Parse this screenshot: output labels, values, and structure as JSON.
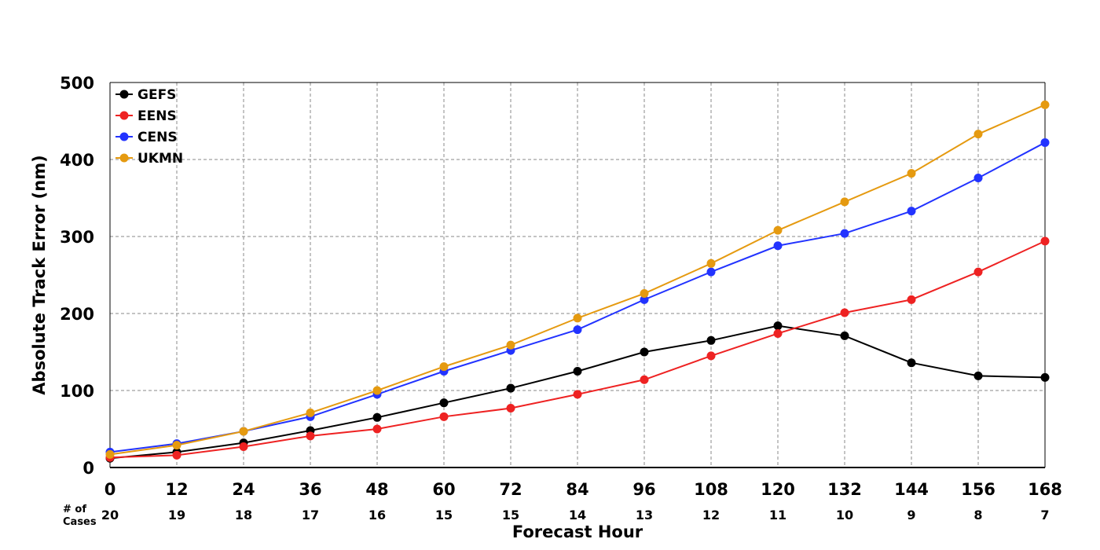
{
  "chart_data": {
    "type": "line",
    "xlabel": "Forecast Hour",
    "ylabel": "Absolute Track Error (nm)",
    "xlim": [
      0,
      168
    ],
    "ylim": [
      0,
      500
    ],
    "x": [
      0,
      12,
      24,
      36,
      48,
      60,
      72,
      84,
      96,
      108,
      120,
      132,
      144,
      156,
      168
    ],
    "yticks": [
      0,
      100,
      200,
      300,
      400,
      500
    ],
    "grid": true,
    "legend_position": "top-left",
    "cases_label": [
      "# of",
      "Cases"
    ],
    "cases": [
      20,
      19,
      18,
      17,
      16,
      15,
      15,
      14,
      13,
      12,
      11,
      10,
      9,
      8,
      7
    ],
    "series": [
      {
        "name": "GEFS",
        "color": "#000000",
        "values": [
          12,
          20,
          32,
          48,
          65,
          84,
          103,
          125,
          150,
          165,
          184,
          171,
          136,
          119,
          117
        ]
      },
      {
        "name": "EENS",
        "color": "#ee2222",
        "values": [
          13,
          16,
          27,
          41,
          50,
          66,
          77,
          95,
          114,
          145,
          174,
          201,
          218,
          254,
          294
        ]
      },
      {
        "name": "CENS",
        "color": "#2233ff",
        "values": [
          20,
          31,
          47,
          66,
          95,
          125,
          152,
          179,
          218,
          254,
          288,
          304,
          333,
          376,
          422
        ]
      },
      {
        "name": "UKMN",
        "color": "#e59a10",
        "values": [
          17,
          29,
          47,
          71,
          100,
          131,
          159,
          194,
          226,
          265,
          308,
          345,
          382,
          433,
          471
        ]
      }
    ]
  }
}
